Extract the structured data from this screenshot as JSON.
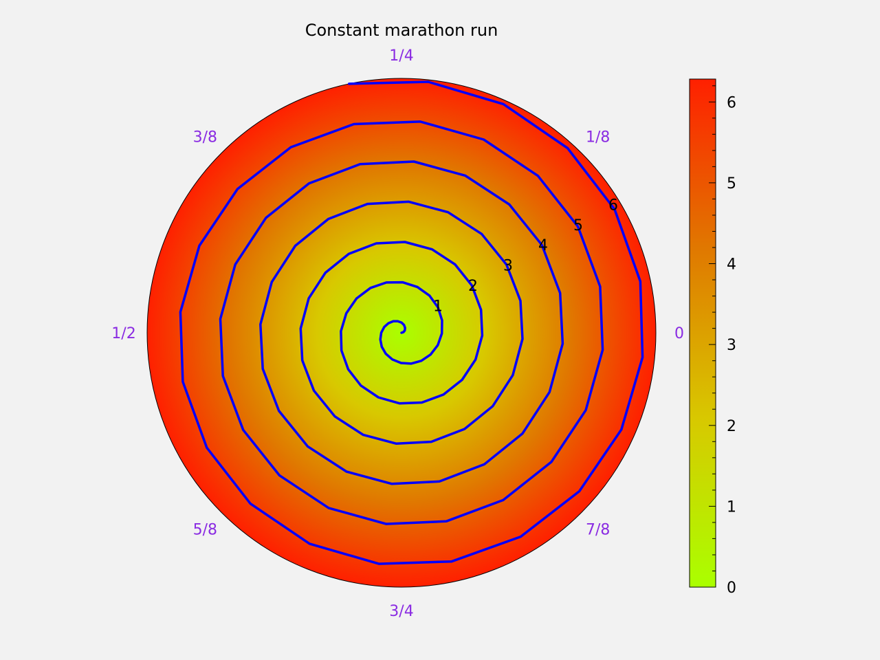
{
  "chart_data": {
    "type": "polar-line",
    "title": "Constant marathon run",
    "angle_labels": [
      {
        "angle": 0,
        "text": "0"
      },
      {
        "angle": 0.125,
        "text": "1/8"
      },
      {
        "angle": 0.25,
        "text": "1/4"
      },
      {
        "angle": 0.375,
        "text": "3/8"
      },
      {
        "angle": 0.5,
        "text": "1/2"
      },
      {
        "angle": 0.625,
        "text": "5/8"
      },
      {
        "angle": 0.75,
        "text": "3/4"
      },
      {
        "angle": 0.875,
        "text": "7/8"
      }
    ],
    "radial_labels": [
      "1",
      "2",
      "3",
      "4",
      "5",
      "6"
    ],
    "radial_label_angle_deg": 30,
    "rlim": [
      0,
      6.283
    ],
    "series": [
      {
        "type": "spiral",
        "equation": "r = theta / (2*pi)",
        "theta_turns": [
          0,
          6.283
        ],
        "points_per_turn": 20,
        "color": "#0000ff"
      }
    ],
    "background_colormap": {
      "range": [
        0,
        6.283
      ],
      "colors": [
        "#aaff00",
        "#d8c800",
        "#e07800",
        "#ff2000"
      ]
    },
    "colorbar": {
      "range": [
        0,
        6.283
      ],
      "ticks": [
        0,
        1,
        2,
        3,
        4,
        5,
        6
      ],
      "tick_labels": [
        "0",
        "1",
        "2",
        "3",
        "4",
        "5",
        "6"
      ]
    },
    "colors": {
      "angle_label": "#8a2be2",
      "line": "#0000ff",
      "background": "#f2f2f2"
    }
  }
}
